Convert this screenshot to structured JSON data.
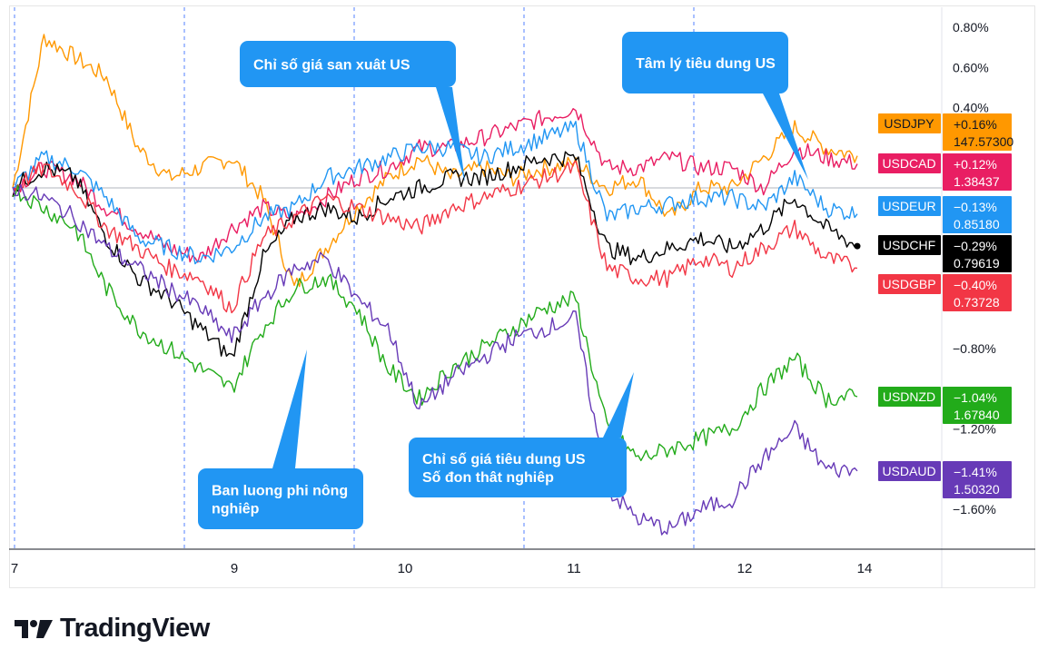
{
  "chart_data": {
    "type": "line",
    "x_tick_labels": [
      "7",
      "9",
      "10",
      "11",
      "12",
      "14"
    ],
    "y_tick_labels": [
      "0.80%",
      "0.60%",
      "0.40%",
      "−0.80%",
      "−1.20%",
      "−1.60%"
    ],
    "ylim": [
      -1.8,
      0.9
    ],
    "grid": "vertical dashed session lines",
    "legend_placement": "right axis labels",
    "series": [
      {
        "name": "USDJPY",
        "color": "#ff9800",
        "change": "+0.16%",
        "price": "147.57300",
        "label_text": "#131722",
        "values": [
          0.0,
          0.75,
          0.65,
          0.55,
          0.2,
          0.05,
          0.1,
          0.15,
          -0.05,
          -0.5,
          -0.3,
          -0.1,
          0.05,
          0.15,
          0.05,
          0.1,
          0.05,
          0.1,
          0.12,
          0.0,
          0.05,
          -0.15,
          0.0,
          0.0,
          0.15,
          0.3,
          0.2,
          0.16
        ]
      },
      {
        "name": "USDCAD",
        "color": "#e91e63",
        "change": "+0.12%",
        "price": "1.38437",
        "label_text": "#ffffff",
        "values": [
          0.0,
          0.1,
          0.05,
          -0.1,
          -0.2,
          -0.3,
          -0.35,
          -0.2,
          -0.1,
          -0.15,
          -0.05,
          0.05,
          0.1,
          0.2,
          0.2,
          0.25,
          0.3,
          0.35,
          0.4,
          0.1,
          0.1,
          0.15,
          0.1,
          0.1,
          0.0,
          0.2,
          0.15,
          0.12
        ]
      },
      {
        "name": "USDEUR",
        "color": "#2196f3",
        "change": "−0.13%",
        "price": "0.85180",
        "label_text": "#ffffff",
        "values": [
          0.0,
          0.15,
          0.1,
          -0.05,
          -0.25,
          -0.3,
          -0.35,
          -0.3,
          -0.15,
          -0.1,
          0.05,
          0.1,
          0.15,
          0.2,
          0.2,
          0.15,
          0.2,
          0.25,
          0.3,
          -0.15,
          -0.1,
          -0.08,
          -0.05,
          -0.05,
          -0.1,
          0.05,
          -0.1,
          -0.13
        ]
      },
      {
        "name": "USDCHF",
        "color": "#000000",
        "change": "−0.29%",
        "price": "0.79619",
        "label_text": "#ffffff",
        "values": [
          0.0,
          0.1,
          0.05,
          -0.25,
          -0.45,
          -0.55,
          -0.7,
          -0.85,
          -0.35,
          -0.15,
          -0.1,
          -0.15,
          -0.05,
          0.0,
          0.05,
          0.05,
          0.1,
          0.15,
          0.15,
          -0.3,
          -0.35,
          -0.3,
          -0.25,
          -0.3,
          -0.2,
          -0.05,
          -0.2,
          -0.29
        ]
      },
      {
        "name": "USDGBP",
        "color": "#f23645",
        "change": "−0.40%",
        "price": "0.73728",
        "label_text": "#ffffff",
        "values": [
          0.0,
          0.1,
          0.0,
          -0.2,
          -0.3,
          -0.4,
          -0.45,
          -0.6,
          -0.25,
          -0.15,
          -0.05,
          -0.1,
          -0.15,
          -0.2,
          -0.1,
          -0.05,
          0.0,
          0.05,
          0.1,
          -0.4,
          -0.45,
          -0.45,
          -0.35,
          -0.4,
          -0.3,
          -0.2,
          -0.35,
          -0.4
        ]
      },
      {
        "name": "USDNZD",
        "color": "#22ab1a",
        "change": "−1.04%",
        "price": "1.67840",
        "label_text": "#ffffff",
        "values": [
          0.0,
          -0.1,
          -0.2,
          -0.5,
          -0.7,
          -0.8,
          -0.9,
          -1.0,
          -0.7,
          -0.5,
          -0.45,
          -0.6,
          -0.9,
          -1.05,
          -0.9,
          -0.8,
          -0.7,
          -0.6,
          -0.55,
          -1.2,
          -1.35,
          -1.3,
          -1.25,
          -1.2,
          -1.0,
          -0.85,
          -1.05,
          -1.04
        ]
      },
      {
        "name": "USDAUD",
        "color": "#673ab7",
        "change": "−1.41%",
        "price": "1.50320",
        "label_text": "#ffffff",
        "values": [
          0.0,
          -0.05,
          -0.15,
          -0.3,
          -0.4,
          -0.5,
          -0.6,
          -0.75,
          -0.55,
          -0.4,
          -0.35,
          -0.55,
          -0.7,
          -1.1,
          -0.95,
          -0.85,
          -0.75,
          -0.7,
          -0.65,
          -1.5,
          -1.65,
          -1.7,
          -1.6,
          -1.55,
          -1.35,
          -1.2,
          -1.4,
          -1.41
        ]
      }
    ],
    "annotations": [
      {
        "id": "nfp",
        "lines": [
          "Ban luong phi nông",
          "nghiêp"
        ]
      },
      {
        "id": "ppi",
        "lines": [
          "Chỉ số giá san xuât US"
        ]
      },
      {
        "id": "cpi",
        "lines": [
          "Chỉ số giá tiêu dung US",
          "Số đon thât nghiêp"
        ]
      },
      {
        "id": "sentiment",
        "lines": [
          "Tâm lý tiêu dung US"
        ]
      }
    ]
  },
  "footer": {
    "brand": "TradingView"
  }
}
